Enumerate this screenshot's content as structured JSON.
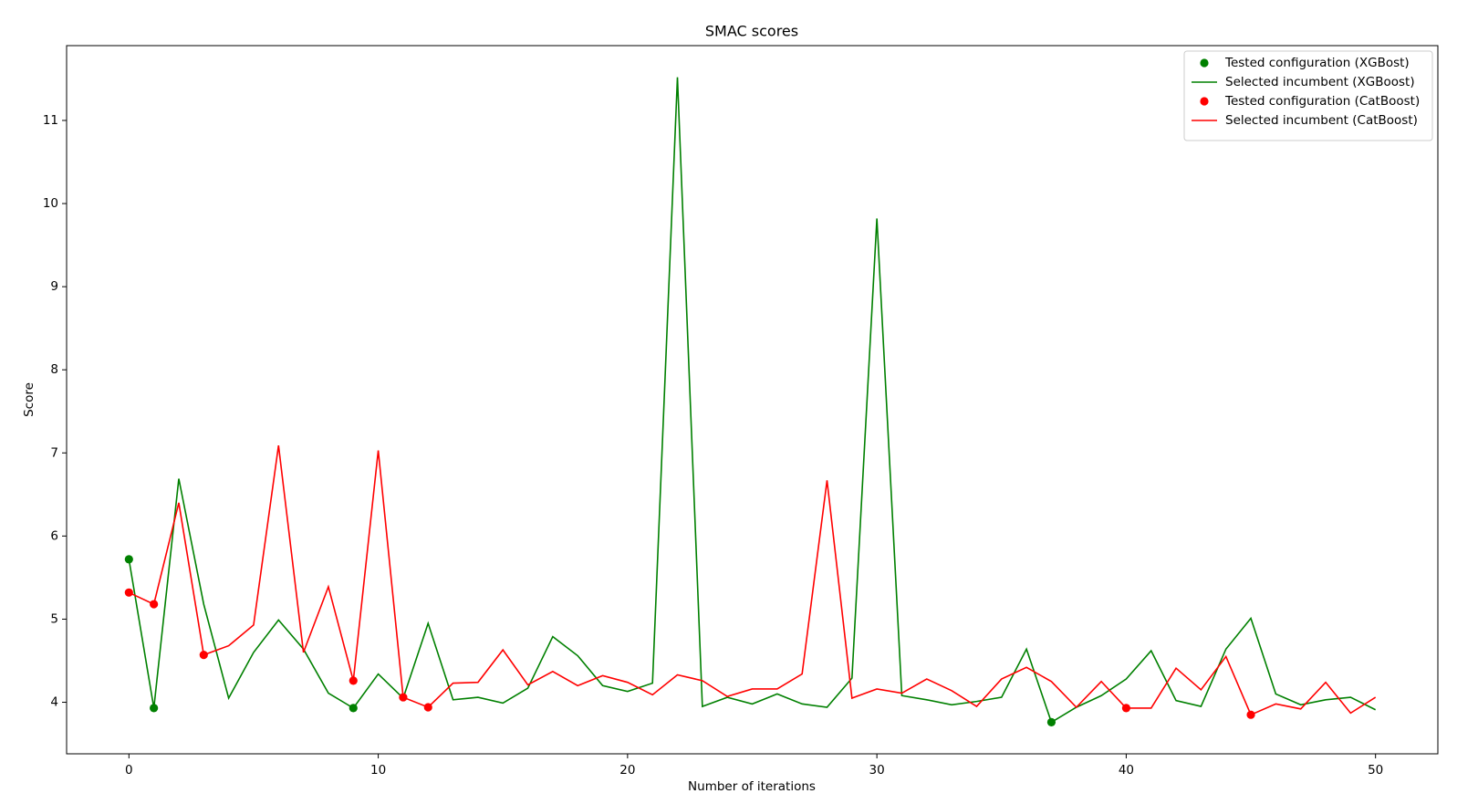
{
  "chart_data": {
    "type": "line",
    "title": "SMAC scores",
    "x_label": "Number of iterations",
    "y_label": "Score",
    "xlim": [
      -2.5,
      52.5
    ],
    "ylim": [
      3.38,
      11.9
    ],
    "xticks": [
      0,
      10,
      20,
      30,
      40,
      50
    ],
    "yticks": [
      4,
      5,
      6,
      7,
      8,
      9,
      10,
      11
    ],
    "grid": false,
    "legend": "upper right",
    "series": [
      {
        "name": "Tested configuration (XGBost)",
        "color": "#008000",
        "mark": "marker",
        "x": [
          0,
          1,
          9,
          37
        ],
        "values": [
          5.72,
          3.93,
          3.93,
          3.76
        ]
      },
      {
        "name": "Selected incumbent (XGBoost)",
        "color": "#008000",
        "mark": "line",
        "x": [
          0,
          1,
          2,
          3,
          4,
          5,
          6,
          7,
          8,
          9,
          10,
          11,
          12,
          13,
          14,
          15,
          16,
          17,
          18,
          19,
          20,
          21,
          22,
          23,
          24,
          25,
          26,
          27,
          28,
          29,
          30,
          31,
          32,
          33,
          34,
          35,
          36,
          37,
          38,
          39,
          40,
          41,
          42,
          43,
          44,
          45,
          46,
          47,
          48,
          49,
          50
        ],
        "values": [
          5.72,
          3.93,
          6.69,
          5.18,
          4.05,
          4.6,
          4.99,
          4.64,
          4.11,
          3.93,
          4.34,
          4.05,
          4.95,
          4.03,
          4.06,
          3.99,
          4.17,
          4.79,
          4.56,
          4.2,
          4.13,
          4.23,
          11.52,
          3.95,
          4.06,
          3.98,
          4.1,
          3.98,
          3.94,
          4.29,
          9.82,
          4.08,
          4.03,
          3.97,
          4.01,
          4.06,
          4.64,
          3.76,
          3.94,
          4.08,
          4.28,
          4.62,
          4.02,
          3.95,
          4.64,
          5.01,
          4.1,
          3.97,
          4.03,
          4.06,
          3.91
        ]
      },
      {
        "name": "Tested configuration (CatBoost)",
        "color": "#ff0000",
        "mark": "marker",
        "x": [
          0,
          1,
          3,
          9,
          11,
          12,
          40,
          45
        ],
        "values": [
          5.32,
          5.18,
          4.57,
          4.26,
          4.06,
          3.94,
          3.93,
          3.85
        ]
      },
      {
        "name": "Selected incumbent (CatBoost)",
        "color": "#ff0000",
        "mark": "line",
        "x": [
          0,
          1,
          2,
          3,
          4,
          5,
          6,
          7,
          8,
          9,
          10,
          11,
          12,
          13,
          14,
          15,
          16,
          17,
          18,
          19,
          20,
          21,
          22,
          23,
          24,
          25,
          26,
          27,
          28,
          29,
          30,
          31,
          32,
          33,
          34,
          35,
          36,
          37,
          38,
          39,
          40,
          41,
          42,
          43,
          44,
          45,
          46,
          47,
          48,
          49,
          50
        ],
        "values": [
          5.32,
          5.18,
          6.4,
          4.57,
          4.68,
          4.93,
          7.09,
          4.6,
          5.39,
          4.26,
          7.03,
          4.06,
          3.94,
          4.23,
          4.24,
          4.63,
          4.21,
          4.37,
          4.2,
          4.32,
          4.24,
          4.09,
          4.33,
          4.26,
          4.07,
          4.16,
          4.16,
          4.34,
          6.67,
          4.05,
          4.16,
          4.11,
          4.28,
          4.14,
          3.95,
          4.28,
          4.42,
          4.25,
          3.94,
          4.25,
          3.93,
          3.93,
          4.41,
          4.15,
          4.55,
          3.85,
          3.98,
          3.92,
          4.24,
          3.87,
          4.06
        ]
      }
    ]
  }
}
